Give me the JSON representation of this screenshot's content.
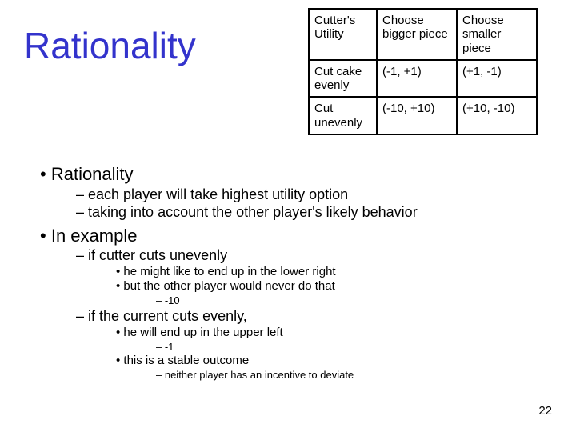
{
  "title": "Rationality",
  "table": {
    "border_color": "#000000",
    "font_size": 15,
    "rows": [
      [
        " Cutter's Utility",
        "Choose bigger piece",
        "Choose smaller piece"
      ],
      [
        "Cut cake evenly",
        "(-1, +1)",
        "(+1, -1)"
      ],
      [
        "Cut unevenly",
        "(-10, +10)",
        "(+10, -10)"
      ]
    ]
  },
  "bullets": [
    {
      "level": 1,
      "text": "Rationality"
    },
    {
      "level": 2,
      "text": "each player will take highest utility option"
    },
    {
      "level": 2,
      "text": "taking into account the other player's likely behavior"
    },
    {
      "level": 1,
      "text": "In example"
    },
    {
      "level": 2,
      "text": "if cutter cuts unevenly"
    },
    {
      "level": 3,
      "text": "he might like to end up in the lower right"
    },
    {
      "level": 3,
      "text": "but the other player would never do that"
    },
    {
      "level": 4,
      "text": "-10"
    },
    {
      "level": 2,
      "text": "if the current cuts evenly,"
    },
    {
      "level": 3,
      "text": "he will end up in the upper left"
    },
    {
      "level": 4,
      "text": "-1"
    },
    {
      "level": 3,
      "text": "this is a stable outcome"
    },
    {
      "level": 4,
      "text": "neither player has an incentive to deviate"
    }
  ],
  "page_number": "22",
  "colors": {
    "title": "#3333cc",
    "text": "#000000",
    "background": "#ffffff"
  }
}
